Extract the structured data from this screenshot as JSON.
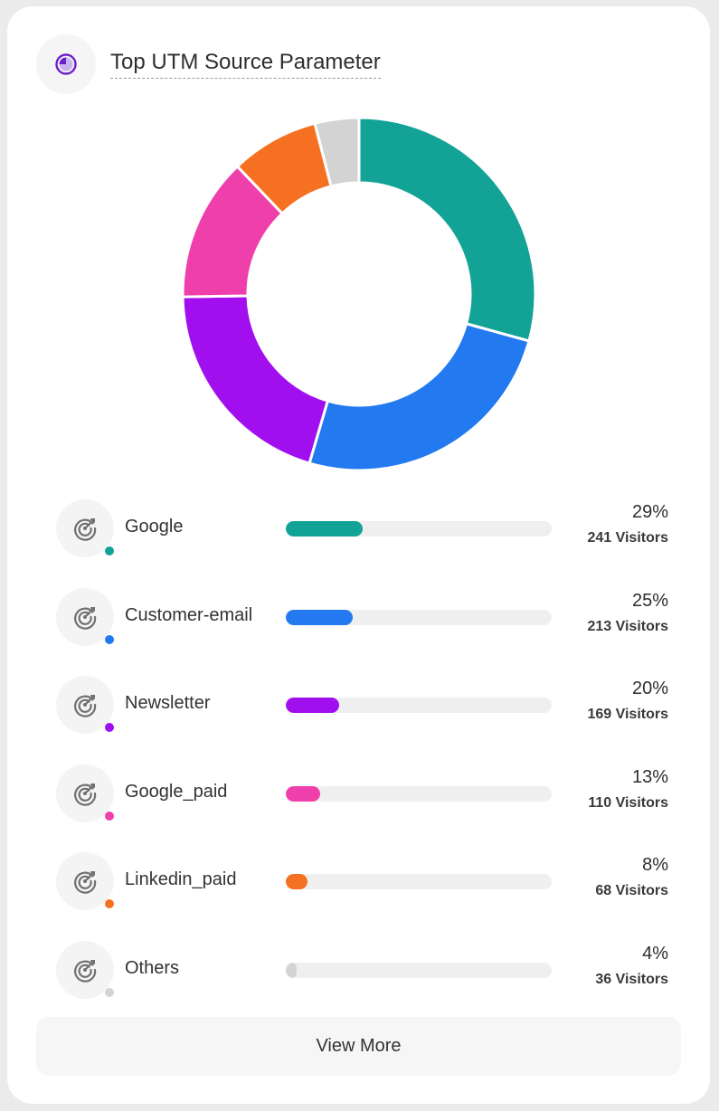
{
  "card": {
    "title": "Top UTM Source Parameter",
    "header_icon": "pie-chart-icon",
    "view_more_label": "View More"
  },
  "chart_data": {
    "type": "pie",
    "style": "donut",
    "legend_placement": "bottom",
    "slices": [
      {
        "label": "Google",
        "percent": 29,
        "visitors": 241,
        "percent_text": "29%",
        "visitors_text": "241 Visitors",
        "color": "#13a396",
        "icon": "target-icon"
      },
      {
        "label": "Customer-email",
        "percent": 25,
        "visitors": 213,
        "percent_text": "25%",
        "visitors_text": "213 Visitors",
        "color": "#2379ef",
        "icon": "target-icon"
      },
      {
        "label": "Newsletter",
        "percent": 20,
        "visitors": 169,
        "percent_text": "20%",
        "visitors_text": "169 Visitors",
        "color": "#a20fee",
        "icon": "target-icon"
      },
      {
        "label": "Google_paid",
        "percent": 13,
        "visitors": 110,
        "percent_text": "13%",
        "visitors_text": "110 Visitors",
        "color": "#ef3fab",
        "icon": "target-icon"
      },
      {
        "label": "Linkedin_paid",
        "percent": 8,
        "visitors": 68,
        "percent_text": "8%",
        "visitors_text": "68 Visitors",
        "color": "#f57121",
        "icon": "target-icon"
      },
      {
        "label": "Others",
        "percent": 4,
        "visitors": 36,
        "percent_text": "4%",
        "visitors_text": "36 Visitors",
        "color": "#d3d3d3",
        "icon": "target-icon"
      }
    ]
  }
}
